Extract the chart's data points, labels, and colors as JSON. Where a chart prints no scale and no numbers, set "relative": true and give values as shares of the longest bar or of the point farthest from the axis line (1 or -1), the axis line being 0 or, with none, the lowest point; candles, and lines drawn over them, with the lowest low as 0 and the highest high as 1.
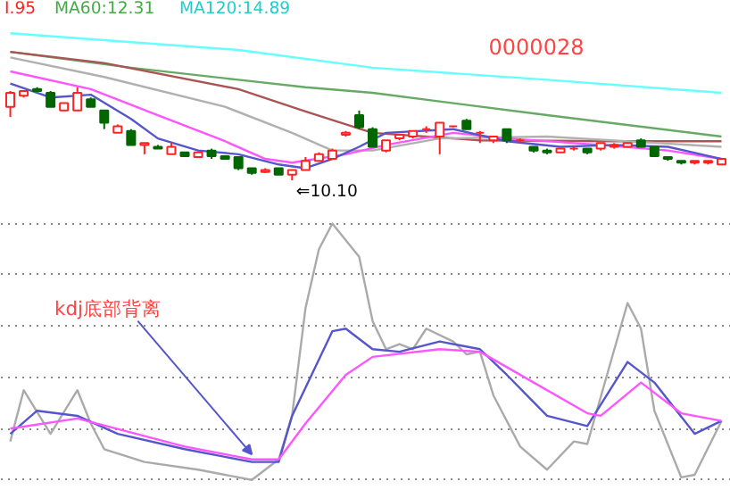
{
  "chart_data": [
    {
      "type": "candlestick",
      "relative": true,
      "categories": [
        null,
        null,
        null,
        null,
        null,
        null,
        null,
        null,
        null,
        null,
        null,
        null,
        null,
        null,
        null,
        null,
        null,
        null,
        null,
        null,
        null,
        null,
        null,
        null,
        null,
        null,
        null,
        null,
        null,
        null,
        null,
        null,
        null,
        null,
        null,
        null,
        null,
        null,
        null,
        null,
        null,
        null,
        null,
        null,
        null,
        null,
        null,
        null,
        null,
        null,
        null,
        null,
        null,
        null
      ],
      "ohlc": [
        [
          0.79,
          0.96,
          0.68,
          0.94
        ],
        [
          0.91,
          0.96,
          0.89,
          0.96
        ],
        [
          0.98,
          1.0,
          0.96,
          0.96
        ],
        [
          0.94,
          0.96,
          0.79,
          0.79
        ],
        [
          0.75,
          0.83,
          0.75,
          0.83
        ],
        [
          0.75,
          1.0,
          0.75,
          0.94
        ],
        [
          0.87,
          0.89,
          0.79,
          0.79
        ],
        [
          0.75,
          0.75,
          0.55,
          0.62
        ],
        [
          0.51,
          0.6,
          0.51,
          0.58
        ],
        [
          0.53,
          0.55,
          0.38,
          0.38
        ],
        [
          0.38,
          0.4,
          0.28,
          0.4
        ],
        [
          0.36,
          0.38,
          0.34,
          0.34
        ],
        [
          0.28,
          0.4,
          0.28,
          0.36
        ],
        [
          0.3,
          0.3,
          0.25,
          0.26
        ],
        [
          0.25,
          0.3,
          0.25,
          0.3
        ],
        [
          0.32,
          0.34,
          0.23,
          0.26
        ],
        [
          0.26,
          0.26,
          0.23,
          0.23
        ],
        [
          0.25,
          0.25,
          0.11,
          0.13
        ],
        [
          0.13,
          0.13,
          0.06,
          0.08
        ],
        [
          0.09,
          0.13,
          0.08,
          0.11
        ],
        [
          0.13,
          0.13,
          0.06,
          0.06
        ],
        [
          0.06,
          0.11,
          0.0,
          0.11
        ],
        [
          0.11,
          0.25,
          0.11,
          0.21
        ],
        [
          0.21,
          0.3,
          0.21,
          0.28
        ],
        [
          0.23,
          0.34,
          0.23,
          0.32
        ],
        [
          0.49,
          0.53,
          0.47,
          0.51
        ],
        [
          0.7,
          0.75,
          0.55,
          0.57
        ],
        [
          0.55,
          0.57,
          0.36,
          0.36
        ],
        [
          0.32,
          0.43,
          0.3,
          0.43
        ],
        [
          0.45,
          0.49,
          0.43,
          0.49
        ],
        [
          0.47,
          0.53,
          0.45,
          0.53
        ],
        [
          0.55,
          0.58,
          0.51,
          0.55
        ],
        [
          0.47,
          0.62,
          0.28,
          0.62
        ],
        [
          0.58,
          0.58,
          0.57,
          0.58
        ],
        [
          0.64,
          0.66,
          0.55,
          0.55
        ],
        [
          0.51,
          0.53,
          0.4,
          0.51
        ],
        [
          0.43,
          0.47,
          0.4,
          0.47
        ],
        [
          0.55,
          0.55,
          0.4,
          0.43
        ],
        [
          0.43,
          0.45,
          0.4,
          0.43
        ],
        [
          0.36,
          0.36,
          0.3,
          0.32
        ],
        [
          0.32,
          0.34,
          0.28,
          0.3
        ],
        [
          0.3,
          0.34,
          0.3,
          0.34
        ],
        [
          0.34,
          0.36,
          0.32,
          0.34
        ],
        [
          0.34,
          0.34,
          0.28,
          0.3
        ],
        [
          0.34,
          0.4,
          0.32,
          0.4
        ],
        [
          0.36,
          0.4,
          0.34,
          0.38
        ],
        [
          0.36,
          0.4,
          0.36,
          0.4
        ],
        [
          0.43,
          0.45,
          0.36,
          0.36
        ],
        [
          0.36,
          0.36,
          0.25,
          0.26
        ],
        [
          0.25,
          0.25,
          0.21,
          0.23
        ],
        [
          0.21,
          0.21,
          0.17,
          0.19
        ],
        [
          0.19,
          0.21,
          0.17,
          0.21
        ],
        [
          0.19,
          0.21,
          0.17,
          0.21
        ],
        [
          0.17,
          0.23,
          0.17,
          0.23
        ]
      ],
      "series": [
        {
          "type": "line",
          "color": "#66ffff",
          "values": [
            1.58,
            null,
            null,
            null,
            null,
            null,
            null,
            null,
            null,
            null,
            null,
            null,
            null,
            null,
            null,
            null,
            null,
            1.4,
            null,
            null,
            null,
            null,
            null,
            null,
            null,
            null,
            null,
            1.21,
            null,
            null,
            null,
            null,
            null,
            null,
            null,
            null,
            null,
            null,
            null,
            null,
            1.08,
            null,
            null,
            null,
            null,
            null,
            null,
            null,
            null,
            null,
            null,
            null,
            null,
            0.94
          ]
        },
        {
          "type": "line",
          "color": "#66aa66",
          "values": [
            1.38,
            null,
            null,
            null,
            null,
            null,
            null,
            null,
            null,
            1.21,
            null,
            null,
            null,
            null,
            null,
            null,
            null,
            1.08,
            null,
            null,
            null,
            null,
            1.0,
            null,
            null,
            null,
            null,
            0.94,
            null,
            null,
            null,
            null,
            null,
            null,
            null,
            null,
            null,
            null,
            null,
            null,
            0.7,
            null,
            null,
            null,
            null,
            null,
            null,
            null,
            null,
            null,
            null,
            null,
            null,
            0.47
          ]
        },
        {
          "type": "line",
          "color": "#aa5555",
          "values": [
            1.38,
            null,
            null,
            null,
            null,
            null,
            null,
            1.26,
            null,
            null,
            null,
            null,
            null,
            null,
            null,
            null,
            null,
            0.98,
            null,
            null,
            null,
            null,
            0.74,
            null,
            null,
            null,
            null,
            0.51,
            null,
            null,
            null,
            null,
            null,
            null,
            null,
            0.43,
            null,
            null,
            null,
            null,
            null,
            null,
            null,
            null,
            null,
            0.42,
            null,
            null,
            null,
            null,
            null,
            null,
            null,
            0.42
          ]
        },
        {
          "type": "line",
          "color": "#b0b0b0",
          "values": [
            1.32,
            null,
            null,
            null,
            null,
            null,
            null,
            1.11,
            null,
            null,
            null,
            null,
            null,
            null,
            null,
            null,
            0.79,
            null,
            null,
            null,
            null,
            0.51,
            null,
            null,
            0.32,
            null,
            null,
            0.32,
            null,
            null,
            null,
            null,
            0.45,
            null,
            null,
            null,
            null,
            null,
            null,
            null,
            0.47,
            null,
            null,
            null,
            null,
            null,
            null,
            null,
            null,
            null,
            null,
            null,
            null,
            0.36
          ]
        },
        {
          "type": "line",
          "color": "#ff55ff",
          "values": [
            1.17,
            null,
            null,
            null,
            null,
            null,
            0.98,
            null,
            null,
            null,
            null,
            0.7,
            null,
            null,
            null,
            null,
            0.42,
            null,
            null,
            0.23,
            null,
            0.19,
            null,
            null,
            null,
            0.28,
            null,
            null,
            0.38,
            null,
            null,
            null,
            null,
            0.51,
            null,
            null,
            null,
            0.45,
            null,
            null,
            null,
            null,
            null,
            null,
            0.38,
            null,
            null,
            null,
            null,
            0.32,
            null,
            null,
            null,
            0.23
          ]
        },
        {
          "type": "line",
          "color": "#5555cc",
          "values": [
            1.04,
            null,
            null,
            0.89,
            null,
            null,
            0.92,
            null,
            null,
            0.66,
            null,
            0.45,
            null,
            null,
            0.32,
            null,
            null,
            0.28,
            null,
            null,
            0.17,
            null,
            0.13,
            null,
            0.23,
            null,
            0.36,
            null,
            0.51,
            null,
            null,
            null,
            null,
            0.55,
            null,
            null,
            null,
            0.42,
            null,
            null,
            null,
            0.36,
            null,
            null,
            null,
            0.38,
            null,
            null,
            null,
            0.36,
            null,
            null,
            null,
            0.23
          ]
        }
      ],
      "annotations": [
        "I.95",
        "MA60:12.31",
        "MA120:14.89",
        "0000028",
        "⇐10.10"
      ]
    },
    {
      "type": "line",
      "relative": true,
      "grid": "y",
      "categories": [
        null,
        null,
        null,
        null,
        null,
        null,
        null,
        null,
        null,
        null,
        null,
        null,
        null,
        null,
        null,
        null,
        null,
        null,
        null,
        null,
        null,
        null,
        null,
        null,
        null,
        null,
        null,
        null,
        null,
        null,
        null,
        null,
        null,
        null,
        null,
        null,
        null,
        null,
        null,
        null,
        null,
        null,
        null,
        null,
        null,
        null,
        null,
        null,
        null,
        null,
        null,
        null,
        null,
        null
      ],
      "series": [
        {
          "color": "#aaaaaa",
          "values": [
            0.15,
            0.35,
            null,
            0.18,
            null,
            0.35,
            0.22,
            0.12,
            null,
            null,
            0.07,
            null,
            null,
            null,
            0.04,
            null,
            null,
            null,
            0.0,
            null,
            0.08,
            0.25,
            0.67,
            0.9,
            1.0,
            null,
            0.87,
            0.62,
            0.51,
            0.53,
            0.51,
            0.59,
            null,
            0.54,
            0.49,
            0.5,
            0.33,
            null,
            0.13,
            null,
            0.04,
            null,
            0.15,
            0.14,
            null,
            null,
            0.69,
            0.59,
            0.27,
            null,
            0.01,
            0.02,
            null,
            0.23
          ]
        },
        {
          "color": "#5555cc",
          "values": [
            0.18,
            null,
            0.27,
            null,
            null,
            0.25,
            null,
            null,
            0.18,
            null,
            null,
            null,
            null,
            0.12,
            null,
            null,
            null,
            null,
            0.07,
            null,
            0.07,
            0.25,
            null,
            null,
            0.58,
            0.59,
            null,
            0.51,
            null,
            0.5,
            null,
            null,
            0.54,
            null,
            null,
            0.51,
            null,
            0.41,
            null,
            null,
            0.25,
            null,
            null,
            0.21,
            null,
            null,
            0.46,
            null,
            0.38,
            null,
            null,
            0.18,
            null,
            0.23
          ]
        },
        {
          "color": "#ff55ff",
          "values": [
            0.2,
            null,
            null,
            null,
            null,
            0.24,
            null,
            null,
            null,
            null,
            null,
            null,
            null,
            0.13,
            null,
            null,
            null,
            null,
            0.08,
            null,
            0.08,
            null,
            0.22,
            null,
            null,
            0.41,
            null,
            0.48,
            null,
            null,
            null,
            null,
            0.51,
            null,
            null,
            0.5,
            null,
            0.44,
            null,
            null,
            null,
            null,
            null,
            0.26,
            0.25,
            null,
            null,
            0.38,
            null,
            null,
            0.26,
            null,
            null,
            0.23
          ]
        }
      ],
      "annotations": [
        "kdj底部背离"
      ]
    }
  ]
}
